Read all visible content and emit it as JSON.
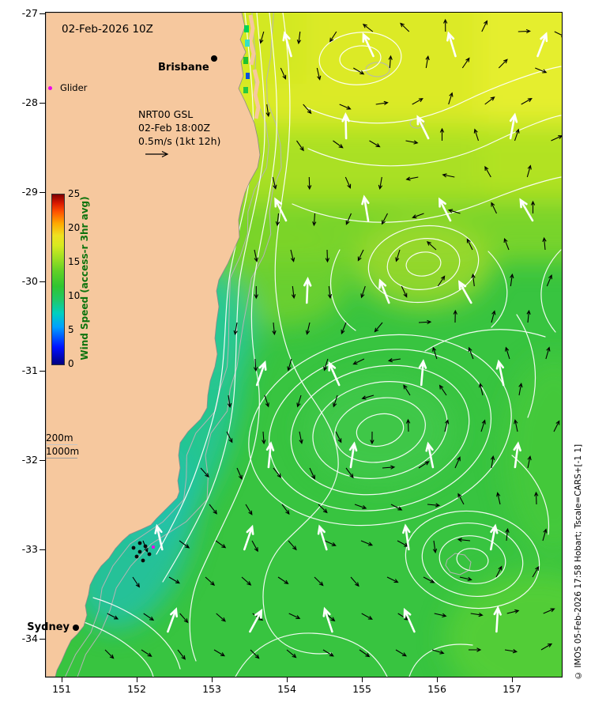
{
  "header": {
    "datetime": "02-Feb-2026 10Z"
  },
  "cities": {
    "brisbane": "Brisbane",
    "sydney": "Sydney"
  },
  "legend": {
    "glider": "Glider",
    "model_name": "NRT00 GSL",
    "model_time": "02-Feb 18:00Z",
    "model_scale": "0.5m/s (1kt 12h)",
    "depth_200": "200m",
    "depth_1000": "1000m"
  },
  "colorbar": {
    "title": "Wind Speed (access-r 3hr avg)",
    "title_color": "#0d730d",
    "ticks": [
      0,
      5,
      10,
      15,
      20,
      25
    ],
    "range": [
      0,
      25
    ],
    "stops": [
      {
        "p": 0,
        "c": "#000080"
      },
      {
        "p": 10,
        "c": "#0010ff"
      },
      {
        "p": 22,
        "c": "#00a0ff"
      },
      {
        "p": 30,
        "c": "#00d0c0"
      },
      {
        "p": 38,
        "c": "#20c868"
      },
      {
        "p": 46,
        "c": "#30c530"
      },
      {
        "p": 55,
        "c": "#62d026"
      },
      {
        "p": 62,
        "c": "#9ade22"
      },
      {
        "p": 70,
        "c": "#d8ea20"
      },
      {
        "p": 76,
        "c": "#f0e020"
      },
      {
        "p": 83,
        "c": "#ffa800"
      },
      {
        "p": 90,
        "c": "#ff5000"
      },
      {
        "p": 95,
        "c": "#d81800"
      },
      {
        "p": 100,
        "c": "#7f0000"
      }
    ]
  },
  "axes": {
    "lat_ticks": [
      "-27",
      "-28",
      "-29",
      "-30",
      "-31",
      "-32",
      "-33",
      "-34"
    ],
    "lon_ticks": [
      "151",
      "152",
      "153",
      "154",
      "155",
      "156",
      "157"
    ]
  },
  "footer": {
    "copyright": "© IMOS 05-Feb-2026 17:58 Hobart; Tscale=CARS+[-1 1]"
  },
  "map": {
    "land_color": "#f6c89e",
    "ocean_base": "#38c440",
    "stream_color": "#ffffff",
    "arrow_black": "#000000",
    "arrow_white": "#ffffff",
    "bathy_color": "#b5b5b5",
    "glider_color": "#ee00ee",
    "marker_color": "#000000"
  }
}
